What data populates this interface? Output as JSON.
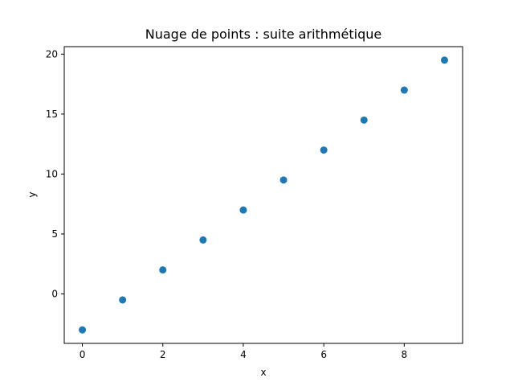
{
  "chart_data": {
    "type": "scatter",
    "title": "Nuage de points : suite arithmétique",
    "xlabel": "x",
    "ylabel": "y",
    "x": [
      0,
      1,
      2,
      3,
      4,
      5,
      6,
      7,
      8,
      9
    ],
    "y": [
      -3,
      -0.5,
      2,
      4.5,
      7,
      9.5,
      12,
      14.5,
      17,
      19.5
    ],
    "xlim": [
      -0.45,
      9.45
    ],
    "ylim": [
      -4.125,
      20.625
    ],
    "xticks": [
      0,
      2,
      4,
      6,
      8
    ],
    "xtick_labels": [
      "0",
      "2",
      "4",
      "6",
      "8"
    ],
    "yticks": [
      0,
      5,
      10,
      15,
      20
    ],
    "ytick_labels": [
      "0",
      "5",
      "10",
      "15",
      "20"
    ],
    "grid": false,
    "legend": false,
    "marker_color": "#1f77b4"
  }
}
